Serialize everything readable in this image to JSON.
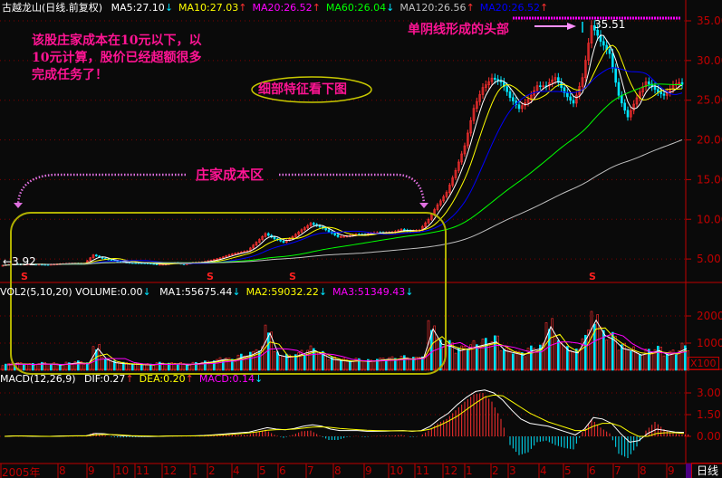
{
  "header": {
    "title": "古越龙山(日线.前复权)",
    "indicators": [
      {
        "label": "MA5:27.10",
        "color": "#ffffff",
        "dir": "↓"
      },
      {
        "label": "MA10:27.03",
        "color": "#ffff00",
        "dir": "↑"
      },
      {
        "label": "MA20:26.52",
        "color": "#ff00ff",
        "dir": "↑"
      },
      {
        "label": "MA60:26.04",
        "color": "#00ff00",
        "dir": "↓"
      },
      {
        "label": "MA120:26.56",
        "color": "#c0c0c0",
        "dir": "↑"
      },
      {
        "label": "MA20:26.52",
        "color": "#0000ff",
        "dir": "↑"
      }
    ]
  },
  "volume_header": {
    "title": "VOL2(5,10,20) VOLUME:0.00",
    "title_dir": "↓",
    "indicators": [
      {
        "label": "MA1:55675.44",
        "color": "#ffffff",
        "dir": "↓"
      },
      {
        "label": "MA2:59032.22",
        "color": "#ffff00",
        "dir": "↓"
      },
      {
        "label": "MA3:51349.43",
        "color": "#ff00ff",
        "dir": "↓"
      }
    ]
  },
  "macd_header": {
    "title": "MACD(12,26,9)",
    "indicators": [
      {
        "label": "DIF:0.27",
        "color": "#ffffff",
        "dir": "↑"
      },
      {
        "label": "DEA:0.20",
        "color": "#ffff00",
        "dir": "↑"
      },
      {
        "label": "MACD:0.14",
        "color": "#ff00ff",
        "dir": "↓"
      }
    ]
  },
  "annotations": {
    "cost_note": [
      "该股庄家成本在10元以下，以",
      "10元计算，股价已经超额很多",
      "完成任务了！"
    ],
    "detail_note": "细部特征看下图",
    "cost_zone": "庄家成本区",
    "top_note": "单阴线形成的头部",
    "max_label": "35.51",
    "min_label": "←3.92",
    "signal_mark": "S"
  },
  "period_button": "日线",
  "volume_unit": "X100",
  "colors": {
    "up": "#ff3030",
    "down": "#00e5ff",
    "axis": "#c00000",
    "annotation": "#ff1493",
    "box": "#b0b000"
  },
  "chart_data": [
    {
      "type": "candlestick",
      "title": "",
      "x_tick_labels": [
        "2005年",
        "8",
        "9",
        "10",
        "11",
        "12",
        "1",
        "2",
        "4",
        "5",
        "6",
        "7",
        "8",
        "9",
        "10",
        "11",
        "12",
        "1",
        "2",
        "3",
        "4",
        "5",
        "6",
        "7",
        "8",
        "9"
      ],
      "y_ticks": [
        5.0,
        10.0,
        15.0,
        20.0,
        25.0,
        30.0,
        35.0
      ],
      "ylim": [
        3.0,
        36.0
      ],
      "grid": true,
      "closes": [
        4.2,
        4.3,
        4.3,
        4.4,
        4.4,
        4.3,
        4.3,
        4.4,
        4.5,
        4.5,
        5.5,
        5.0,
        4.8,
        4.7,
        4.6,
        4.5,
        4.4,
        4.3,
        4.4,
        4.6,
        4.3,
        4.5,
        4.6,
        4.9,
        5.2,
        5.5,
        5.7,
        6.0,
        7.2,
        8.3,
        7.5,
        7.0,
        7.8,
        8.8,
        9.6,
        9.0,
        8.3,
        7.8,
        8.0,
        8.2,
        8.0,
        8.2,
        8.3,
        8.5,
        8.8,
        8.4,
        8.5,
        10.0,
        12.0,
        13.5,
        16.0,
        19.0,
        24.0,
        27.0,
        28.0,
        27.0,
        25.0,
        24.0,
        25.5,
        27.0,
        26.5,
        27.5,
        26.0,
        25.0,
        28.0,
        34.0,
        32.0,
        31.0,
        26.0,
        23.0,
        25.0,
        27.0,
        26.5,
        26.0,
        27.0,
        27.0
      ],
      "max": 35.51,
      "min": 3.92
    },
    {
      "type": "bar",
      "title": "",
      "unit": "X100",
      "y_ticks": [
        1000,
        2000
      ],
      "ylim": [
        0,
        2700
      ],
      "values": [
        250,
        300,
        280,
        260,
        300,
        280,
        250,
        300,
        350,
        300,
        1000,
        500,
        350,
        300,
        280,
        260,
        250,
        300,
        280,
        300,
        250,
        300,
        350,
        400,
        500,
        450,
        600,
        700,
        900,
        1700,
        700,
        600,
        650,
        800,
        900,
        700,
        500,
        450,
        400,
        450,
        400,
        450,
        500,
        500,
        550,
        500,
        600,
        1900,
        1200,
        1100,
        900,
        1000,
        1100,
        1200,
        1300,
        900,
        800,
        700,
        900,
        1000,
        2000,
        1300,
        900,
        800,
        1500,
        2300,
        1600,
        1400,
        1000,
        900,
        700,
        800,
        900,
        700,
        800,
        1000
      ]
    },
    {
      "type": "bar",
      "title": "",
      "y_ticks": [
        0.0,
        1.5,
        3.0
      ],
      "ylim": [
        -2.0,
        3.8
      ],
      "macd": [
        0,
        0.05,
        0.02,
        0,
        -0.03,
        0,
        0.02,
        0.03,
        0.04,
        0,
        0.25,
        0.1,
        -0.05,
        -0.08,
        -0.06,
        -0.05,
        -0.04,
        -0.02,
        0,
        0.03,
        0,
        0.03,
        0.04,
        0.08,
        0.1,
        0.12,
        0.1,
        0.1,
        0.3,
        0.45,
        0.1,
        -0.1,
        0.1,
        0.35,
        0.4,
        0.05,
        -0.25,
        -0.25,
        -0.05,
        0.02,
        -0.05,
        0.02,
        0.04,
        0.05,
        0.1,
        -0.05,
        0,
        0.4,
        0.9,
        1.2,
        1.8,
        2.4,
        2.9,
        3.0,
        2.4,
        1.2,
        -0.6,
        -1.3,
        -1.1,
        -0.4,
        -0.3,
        -0.6,
        -0.8,
        -0.9,
        0.3,
        1.2,
        0.6,
        0.2,
        -1.2,
        -1.5,
        -0.7,
        0.4,
        1.0,
        0.5,
        0.2,
        0.14
      ],
      "dif": [
        0,
        0.03,
        0.03,
        0.01,
        0,
        0,
        0.02,
        0.03,
        0.04,
        0.04,
        0.2,
        0.18,
        0.1,
        0.05,
        0.02,
        0,
        -0.01,
        0,
        0.02,
        0.03,
        0.03,
        0.04,
        0.06,
        0.1,
        0.15,
        0.2,
        0.25,
        0.3,
        0.45,
        0.6,
        0.5,
        0.45,
        0.55,
        0.7,
        0.8,
        0.7,
        0.5,
        0.4,
        0.4,
        0.4,
        0.35,
        0.35,
        0.36,
        0.38,
        0.4,
        0.35,
        0.4,
        0.7,
        1.2,
        1.6,
        2.2,
        2.7,
        3.1,
        3.2,
        3.0,
        2.5,
        1.8,
        1.2,
        0.9,
        0.8,
        0.7,
        0.5,
        0.3,
        0.1,
        0.5,
        1.3,
        1.2,
        0.9,
        0.2,
        -0.4,
        -0.3,
        0.2,
        0.5,
        0.4,
        0.3,
        0.27
      ],
      "dea": [
        0,
        0.02,
        0.02,
        0.02,
        0.01,
        0,
        0.01,
        0.02,
        0.03,
        0.03,
        0.1,
        0.13,
        0.12,
        0.09,
        0.05,
        0.03,
        0.02,
        0.01,
        0.02,
        0.02,
        0.03,
        0.03,
        0.04,
        0.07,
        0.1,
        0.14,
        0.19,
        0.24,
        0.32,
        0.42,
        0.46,
        0.47,
        0.5,
        0.57,
        0.64,
        0.66,
        0.62,
        0.55,
        0.5,
        0.46,
        0.42,
        0.4,
        0.39,
        0.38,
        0.38,
        0.37,
        0.38,
        0.5,
        0.75,
        1.05,
        1.4,
        1.85,
        2.3,
        2.7,
        2.85,
        2.8,
        2.4,
        2.0,
        1.6,
        1.3,
        1.0,
        0.8,
        0.6,
        0.4,
        0.4,
        0.7,
        0.9,
        0.9,
        0.7,
        0.3,
        0.0,
        0.0,
        0.2,
        0.25,
        0.25,
        0.2
      ]
    }
  ]
}
